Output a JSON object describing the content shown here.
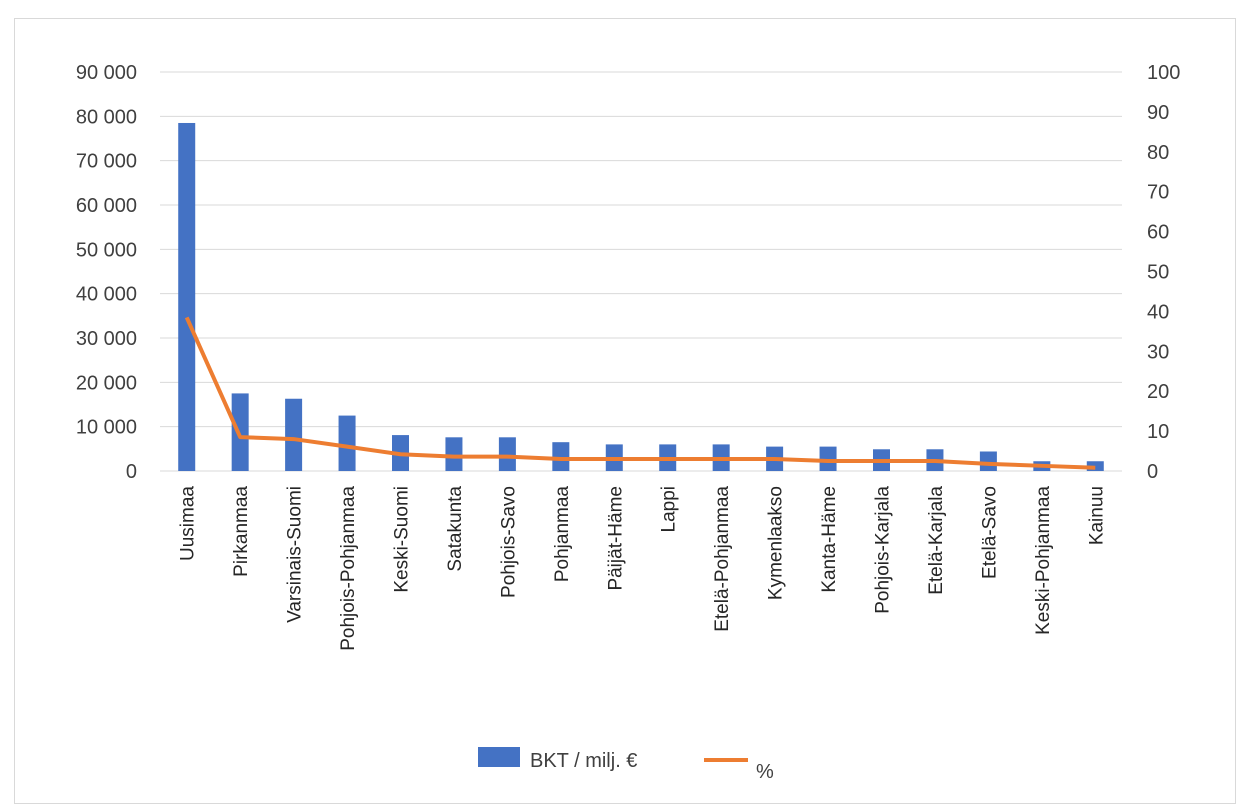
{
  "chart_data": {
    "type": "bar",
    "categories": [
      "Uusimaa",
      "Pirkanmaa",
      "Varsinais-Suomi",
      "Pohjois-Pohjanmaa",
      "Keski-Suomi",
      "Satakunta",
      "Pohjois-Savo",
      "Pohjanmaa",
      "Päijät-Häme",
      "Lappi",
      "Etelä-Pohjanmaa",
      "Kymenlaakso",
      "Kanta-Häme",
      "Pohjois-Karjala",
      "Etelä-Karjala",
      "Etelä-Savo",
      "Keski-Pohjanmaa",
      "Kainuu"
    ],
    "series": [
      {
        "name": "BKT / milj. €",
        "type": "bar",
        "axis": "left",
        "color": "#4472C4",
        "values": [
          78500,
          17500,
          16300,
          12500,
          8100,
          7600,
          7600,
          6500,
          6000,
          6000,
          6000,
          5500,
          5500,
          4900,
          4900,
          4400,
          2200,
          2200
        ]
      },
      {
        "name": "%",
        "type": "line",
        "axis": "right",
        "color": "#ED7D31",
        "values": [
          38.5,
          8.5,
          8.0,
          6.1,
          4.2,
          3.6,
          3.6,
          3.0,
          3.0,
          3.0,
          3.0,
          3.0,
          2.5,
          2.5,
          2.5,
          1.8,
          1.3,
          0.8
        ]
      }
    ],
    "y_left": {
      "min": 0,
      "max": 90000,
      "ticks": [
        "0",
        "10 000",
        "20 000",
        "30 000",
        "40 000",
        "50 000",
        "60 000",
        "70 000",
        "80 000",
        "90 000"
      ]
    },
    "y_right": {
      "min": 0,
      "max": 100,
      "ticks": [
        "0",
        "10",
        "20",
        "30",
        "40",
        "50",
        "60",
        "70",
        "80",
        "90",
        "100"
      ]
    },
    "grid": true,
    "legend_position": "bottom"
  }
}
